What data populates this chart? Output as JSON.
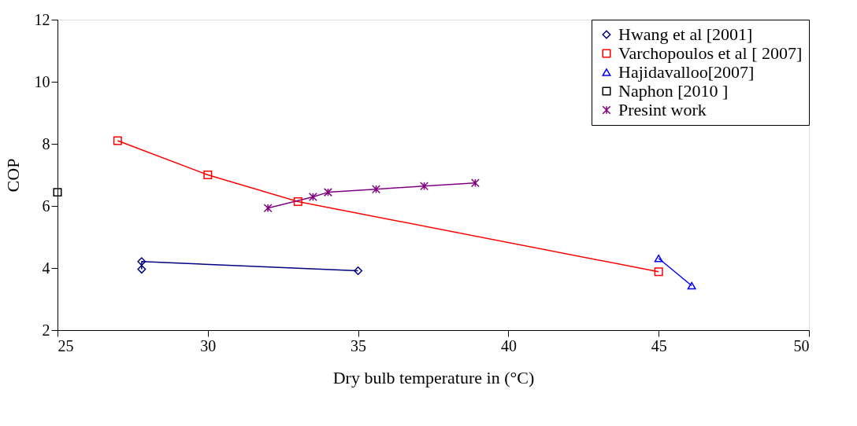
{
  "chart_data": {
    "type": "line",
    "xlabel": "Dry bulb temperature in (°C)",
    "ylabel": "COP",
    "xlim": [
      25,
      50
    ],
    "xticks": [
      25,
      30,
      35,
      40,
      45,
      50
    ],
    "ylim": [
      2,
      12
    ],
    "yticks": [
      2,
      4,
      6,
      8,
      10,
      12
    ],
    "grid": false,
    "legend": "top right",
    "line_style": "solid",
    "series": [
      {
        "name": "Hwang et al [2001]",
        "color": "#000080",
        "marker": "diamond",
        "x": [
          27.8,
          27.8,
          35.0
        ],
        "values": [
          3.96,
          4.21,
          3.91
        ]
      },
      {
        "name": "Varchopoulos et al [ 2007]",
        "color": "#ff0000",
        "marker": "square",
        "x": [
          27,
          30,
          33,
          45
        ],
        "values": [
          8.1,
          7.0,
          6.14,
          3.88
        ]
      },
      {
        "name": "Hajidavalloo[2007]",
        "color": "#0000ff",
        "marker": "triangle",
        "x": [
          45,
          46.1
        ],
        "values": [
          4.31,
          3.43
        ]
      },
      {
        "name": "Naphon [2010 ]",
        "color": "#000000",
        "marker": "square",
        "x": [
          25
        ],
        "values": [
          6.44
        ]
      },
      {
        "name": "Presint work",
        "color": "#800080",
        "marker": "cross",
        "x": [
          32.0,
          33.5,
          34.0,
          35.6,
          37.2,
          38.9
        ],
        "values": [
          5.93,
          6.29,
          6.44,
          6.54,
          6.64,
          6.74
        ]
      }
    ]
  }
}
